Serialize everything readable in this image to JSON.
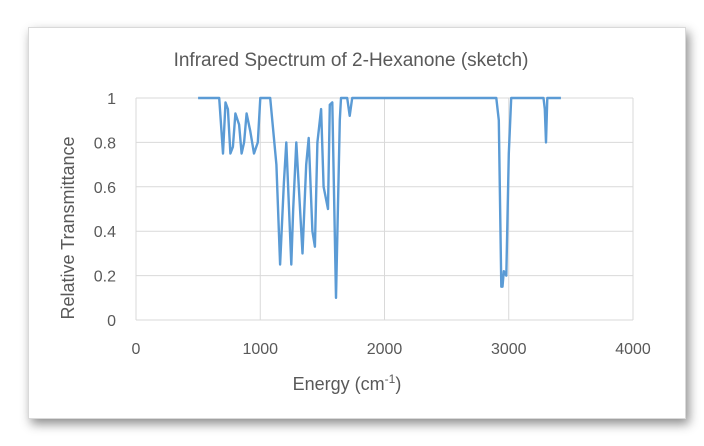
{
  "chart_data": {
    "type": "line",
    "title": "Infrared Spectrum of 2-Hexanone (sketch)",
    "xlabel": "Energy (cm",
    "xlabel_sup": "-1",
    "xlabel_end": ")",
    "ylabel": "Relative Transmittance",
    "xlim": [
      0,
      4000
    ],
    "ylim": [
      0,
      1
    ],
    "x_ticks": [
      "0",
      "1000",
      "2000",
      "3000",
      "4000"
    ],
    "y_ticks": [
      "0",
      "0.2",
      "0.4",
      "0.6",
      "0.8",
      "1"
    ],
    "grid": true,
    "legend": "none",
    "color": "#5b9bd5",
    "series": [
      {
        "x": [
          500,
          670,
          700,
          720,
          740,
          760,
          780,
          800,
          830,
          850,
          870,
          890,
          920,
          950,
          980,
          1000,
          1040,
          1080,
          1130,
          1160,
          1190,
          1210,
          1250,
          1265,
          1290,
          1310,
          1340,
          1370,
          1390,
          1420,
          1440,
          1460,
          1490,
          1510,
          1545,
          1560,
          1580,
          1610,
          1640,
          1650,
          1680,
          1700,
          1720,
          1740,
          1990,
          2000,
          2010,
          2880,
          2900,
          2920,
          2940,
          2950,
          2960,
          2980,
          3000,
          3020,
          3280,
          3290,
          3300,
          3310,
          3330,
          3420
        ],
        "values": [
          1.0,
          1.0,
          0.75,
          0.98,
          0.95,
          0.75,
          0.78,
          0.93,
          0.88,
          0.75,
          0.8,
          0.93,
          0.85,
          0.75,
          0.8,
          1.0,
          1.0,
          1.0,
          0.7,
          0.25,
          0.62,
          0.8,
          0.25,
          0.5,
          0.8,
          0.6,
          0.3,
          0.7,
          0.82,
          0.4,
          0.33,
          0.8,
          0.95,
          0.6,
          0.5,
          0.97,
          0.98,
          0.1,
          0.9,
          1.0,
          1.0,
          1.0,
          0.92,
          1.0,
          1.0,
          1.0,
          1.0,
          1.0,
          1.0,
          0.9,
          0.15,
          0.15,
          0.22,
          0.2,
          0.75,
          1.0,
          1.0,
          0.95,
          0.8,
          1.0,
          1.0,
          1.0
        ]
      }
    ]
  }
}
